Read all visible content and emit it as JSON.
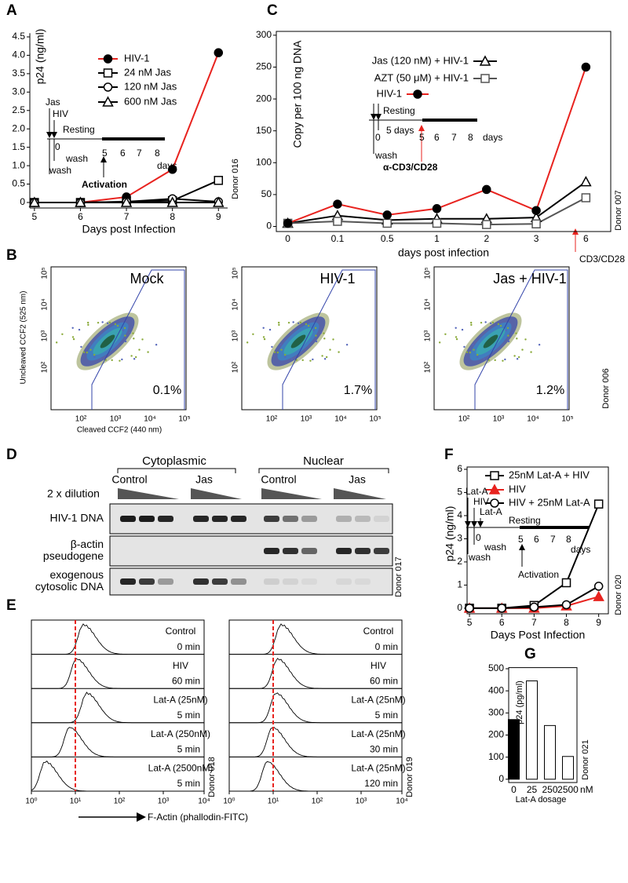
{
  "panel_labels": [
    "A",
    "B",
    "C",
    "D",
    "E",
    "F",
    "G"
  ],
  "chart_data": [
    {
      "type": "line",
      "xlabel": "Days post Infection",
      "ylabel": "p24 (ng/ml)",
      "side_label": "Donor 016",
      "x": [
        5,
        6,
        7,
        8,
        9
      ],
      "xlim": [
        4.9,
        9.2
      ],
      "xticks": [
        5,
        6,
        7,
        8,
        9
      ],
      "ylim": [
        -0.15,
        4.6
      ],
      "yticks": [
        0,
        0.5,
        {
          "value": 1,
          "label": "1.0"
        },
        1.5,
        {
          "value": 2,
          "label": "2.0"
        },
        2.5,
        {
          "value": 3,
          "label": "3.0"
        },
        3.5,
        {
          "value": 4,
          "label": "4.0"
        },
        4.5
      ],
      "series": [
        {
          "name": "HIV-1",
          "color": "#e8231f",
          "marker": "circle",
          "marker_fill": "#000000",
          "values": [
            0,
            0,
            0.15,
            0.9,
            4.07
          ]
        },
        {
          "name": "24 nM Jas",
          "color": "#000000",
          "marker": "square",
          "marker_fill": "#ffffff",
          "values": [
            0,
            0,
            0.02,
            0.05,
            0.6
          ]
        },
        {
          "name": "120 nM Jas",
          "color": "#000000",
          "marker": "circle",
          "marker_fill": "#ffffff",
          "values": [
            0,
            0,
            0.02,
            0.1,
            0.02
          ]
        },
        {
          "name": "600 nM Jas",
          "color": "#000000",
          "marker": "triangle",
          "marker_fill": "#ffffff",
          "values": [
            0,
            0,
            0,
            0,
            0
          ]
        }
      ],
      "annotations": [
        "Jas",
        "HIV",
        "Resting",
        "0",
        "wash",
        "wash",
        "5",
        "6",
        "7",
        "8",
        "days",
        "Activation"
      ]
    },
    {
      "type": "line",
      "xlabel": "days post infection",
      "ylabel": "Copy per 100 ng DNA",
      "side_label": "Donor 007",
      "categories": [
        "0",
        "0.1",
        "0.5",
        "1",
        "2",
        "3",
        "6"
      ],
      "ylim": [
        -8,
        306
      ],
      "yticks": [
        0,
        50,
        100,
        150,
        200,
        250,
        300
      ],
      "series": [
        {
          "name": "Jas (120 nM) + HIV-1",
          "color": "#000000",
          "marker": "triangle",
          "marker_fill": "#ffffff",
          "values": [
            5,
            17,
            10,
            12,
            12,
            14,
            70
          ]
        },
        {
          "name": "AZT (50 μM) + HIV-1",
          "color": "#555555",
          "marker": "square",
          "marker_fill": "#ffffff",
          "values": [
            5,
            8,
            5,
            5,
            3,
            4,
            45
          ]
        },
        {
          "name": "HIV-1",
          "color": "#e8231f",
          "marker": "circle",
          "marker_fill": "#000000",
          "values": [
            5,
            35,
            18,
            28,
            58,
            25,
            250
          ]
        }
      ],
      "annotations": [
        "Resting",
        "5 days",
        "0",
        "5",
        "6",
        "7",
        "8",
        "days",
        "wash",
        "α-CD3/CD28",
        "CD3/CD28"
      ]
    },
    {
      "type": "line",
      "xlabel": "Days Post Infection",
      "ylabel": "p24 (ng/ml)",
      "side_label": "Donor 020",
      "x": [
        5,
        6,
        7,
        8,
        9
      ],
      "xlim": [
        4.95,
        9.3
      ],
      "xticks": [
        5,
        6,
        7,
        8,
        9
      ],
      "ylim": [
        -0.24,
        6.1
      ],
      "yticks": [
        0,
        1,
        2,
        3,
        4,
        5,
        6
      ],
      "series": [
        {
          "name": "25nM Lat-A + HIV",
          "color": "#000000",
          "marker": "square",
          "marker_fill": "#ffffff",
          "values": [
            0,
            0,
            0.12,
            1.1,
            4.5
          ]
        },
        {
          "name": "HIV",
          "color": "#e8231f",
          "marker": "triangle",
          "marker_fill": "#e8231f",
          "values": [
            0,
            0,
            0,
            0.1,
            0.5
          ]
        },
        {
          "name": "HIV + 25nM Lat-A",
          "color": "#000000",
          "marker": "circle",
          "marker_fill": "#ffffff",
          "values": [
            0,
            0,
            0.05,
            0.15,
            0.95
          ]
        }
      ],
      "annotations": [
        "Lat-A",
        "HIV",
        "Lat-A",
        "Resting",
        "0",
        "wash",
        "wash",
        "5",
        "6",
        "7",
        "8",
        "days",
        "Activation"
      ]
    },
    {
      "type": "bar",
      "xlabel": "Lat-A dosage",
      "ylabel": "p24 (pg/ml)",
      "side_label": "Donor 021",
      "unit": "nM",
      "categories": [
        "0",
        "25",
        "250",
        "2500"
      ],
      "values": [
        270,
        445,
        243,
        103
      ],
      "colors": [
        "#000000",
        "#ffffff",
        "#ffffff",
        "#ffffff"
      ],
      "ylim": [
        -15,
        505
      ],
      "yticks": [
        0,
        100,
        200,
        300,
        400,
        500
      ]
    }
  ],
  "flow": {
    "ylabel": "Uncleaved CCF2 (525 nm)",
    "xlabel": "Cleaved CCF2 (440 nm)",
    "side_label": "Donor 006",
    "ticks": [
      "10²",
      "10³",
      "10⁴",
      "10⁵"
    ],
    "plots": [
      {
        "title": "Mock",
        "percent": "0.1%"
      },
      {
        "title": "HIV-1",
        "percent": "1.7%"
      },
      {
        "title": "Jas + HIV-1",
        "percent": "1.2%"
      }
    ]
  },
  "gel": {
    "groups": [
      "Cytoplasmic",
      "Nuclear"
    ],
    "lanes": [
      "Control",
      "Jas",
      "Control",
      "Jas"
    ],
    "dilution": "2 x dilution",
    "rows": [
      [
        "HIV-1 DNA"
      ],
      [
        "β-actin",
        "pseudogene"
      ],
      [
        "exogenous",
        "cytosolic DNA"
      ]
    ],
    "side_label": "Donor 017"
  },
  "histograms": {
    "ticks": [
      "10⁰",
      "10¹",
      "10²",
      "10³",
      "10⁴"
    ],
    "xlabel": "F-Actin (phallodin-FITC)",
    "columns": [
      {
        "side_label": "Donor 018",
        "rows": [
          {
            "label": "Control",
            "time": "0 min"
          },
          {
            "label": "HIV",
            "time": "60 min"
          },
          {
            "label": "Lat-A (25nM)",
            "time": "5 min"
          },
          {
            "label": "Lat-A (250nM)",
            "time": "5 min"
          },
          {
            "label": "Lat-A (2500nM)",
            "time": "5 min"
          }
        ]
      },
      {
        "side_label": "Donor 019",
        "rows": [
          {
            "label": "Control",
            "time": "0 min"
          },
          {
            "label": "HIV",
            "time": "60 min"
          },
          {
            "label": "Lat-A (25nM)",
            "time": "5 min"
          },
          {
            "label": "Lat-A (25nM)",
            "time": "30 min"
          },
          {
            "label": "Lat-A (25nM)",
            "time": "120 min"
          }
        ]
      }
    ]
  }
}
